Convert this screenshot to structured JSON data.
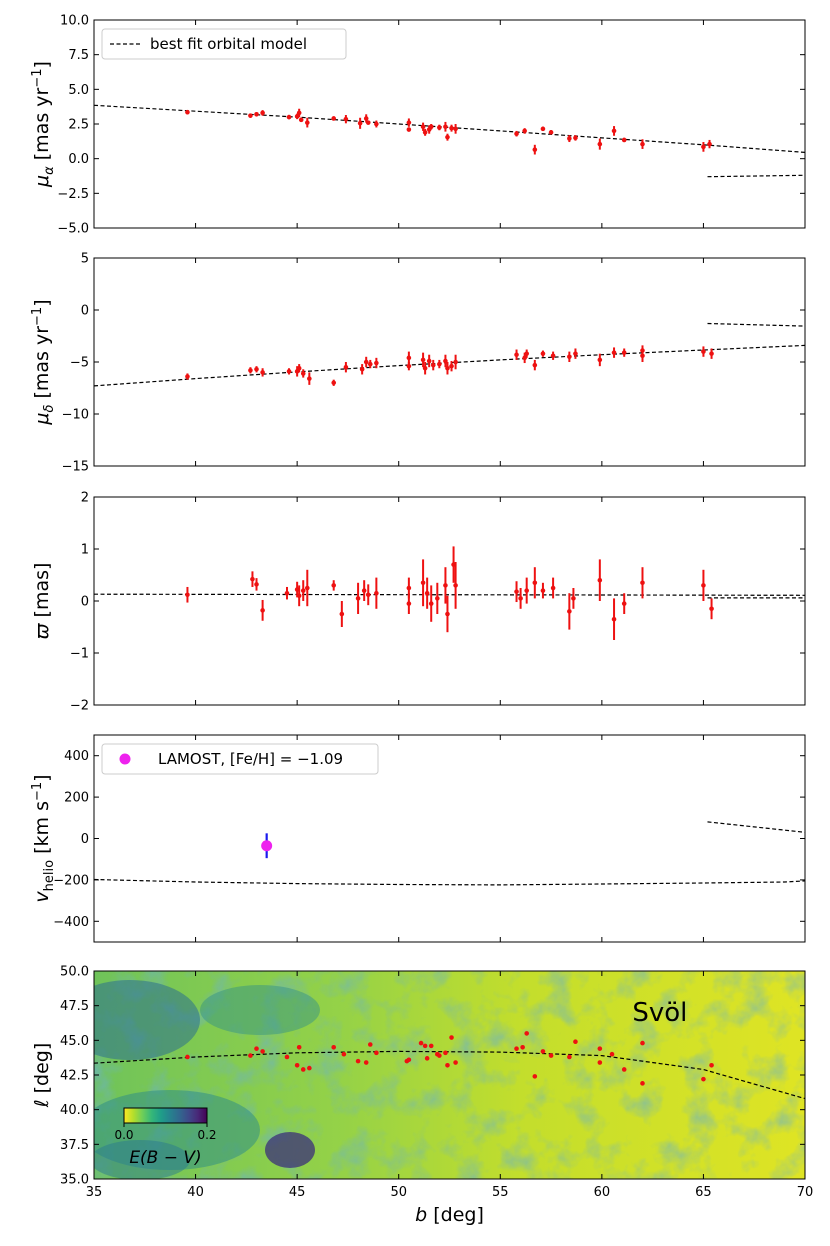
{
  "chart_data": [
    {
      "type": "scatter",
      "panel": "mu_alpha",
      "ylabel_main": "μ",
      "ylabel_sub": "α",
      "ylabel_unit": " [mas yr",
      "ylabel_exp": "−1",
      "ylabel_close": "]",
      "xlim": [
        35,
        70
      ],
      "ylim": [
        -5,
        10
      ],
      "yticks": [
        "−5.0",
        "−2.5",
        "0.0",
        "2.5",
        "5.0",
        "7.5",
        "10.0"
      ],
      "ytick_values": [
        -5,
        -2.5,
        0,
        2.5,
        5,
        7.5,
        10
      ],
      "legend": {
        "label": "best fit orbital model",
        "placement": "top-left"
      },
      "model_lines": [
        {
          "x": [
            35,
            45,
            55,
            65,
            70
          ],
          "y": [
            3.85,
            3.0,
            2.0,
            1.0,
            0.45
          ]
        },
        {
          "x": [
            65.2,
            70
          ],
          "y": [
            -1.3,
            -1.2
          ]
        }
      ],
      "points": [
        [
          39.6,
          3.35,
          0.15
        ],
        [
          42.7,
          3.1,
          0.15
        ],
        [
          43.0,
          3.2,
          0.15
        ],
        [
          43.3,
          3.3,
          0.2
        ],
        [
          44.6,
          3.0,
          0.15
        ],
        [
          45.0,
          3.05,
          0.2
        ],
        [
          45.1,
          3.3,
          0.3
        ],
        [
          45.2,
          2.8,
          0.15
        ],
        [
          45.5,
          2.6,
          0.35
        ],
        [
          46.8,
          2.9,
          0.15
        ],
        [
          47.4,
          2.85,
          0.3
        ],
        [
          48.1,
          2.55,
          0.4
        ],
        [
          48.4,
          2.9,
          0.3
        ],
        [
          48.5,
          2.6,
          0.15
        ],
        [
          48.9,
          2.5,
          0.25
        ],
        [
          50.5,
          2.6,
          0.3
        ],
        [
          50.5,
          2.1,
          0.15
        ],
        [
          51.2,
          2.3,
          0.3
        ],
        [
          51.3,
          1.9,
          0.25
        ],
        [
          51.5,
          2.1,
          0.3
        ],
        [
          51.6,
          2.3,
          0.2
        ],
        [
          52.0,
          2.25,
          0.2
        ],
        [
          52.3,
          2.3,
          0.35
        ],
        [
          52.4,
          1.55,
          0.25
        ],
        [
          52.6,
          2.2,
          0.25
        ],
        [
          52.8,
          2.15,
          0.35
        ],
        [
          55.8,
          1.8,
          0.2
        ],
        [
          56.2,
          2.0,
          0.2
        ],
        [
          56.7,
          0.65,
          0.35
        ],
        [
          57.1,
          2.15,
          0.15
        ],
        [
          57.5,
          1.9,
          0.15
        ],
        [
          58.4,
          1.45,
          0.25
        ],
        [
          58.7,
          1.5,
          0.2
        ],
        [
          59.9,
          1.05,
          0.4
        ],
        [
          60.6,
          2.0,
          0.35
        ],
        [
          61.1,
          1.35,
          0.15
        ],
        [
          62.0,
          1.05,
          0.35
        ],
        [
          65.0,
          0.85,
          0.35
        ],
        [
          65.3,
          1.05,
          0.3
        ]
      ]
    },
    {
      "type": "scatter",
      "panel": "mu_delta",
      "ylabel_main": "μ",
      "ylabel_sub": "δ",
      "ylabel_unit": " [mas yr",
      "ylabel_exp": "−1",
      "ylabel_close": "]",
      "xlim": [
        35,
        70
      ],
      "ylim": [
        -15,
        5
      ],
      "yticks": [
        "−15",
        "−10",
        "−5",
        "0",
        "5"
      ],
      "ytick_values": [
        -15,
        -10,
        -5,
        0,
        5
      ],
      "model_lines": [
        {
          "x": [
            35,
            40,
            45,
            50,
            55,
            60,
            65,
            70
          ],
          "y": [
            -7.3,
            -6.6,
            -5.95,
            -5.35,
            -4.8,
            -4.3,
            -3.85,
            -3.4
          ]
        },
        {
          "x": [
            65.2,
            70
          ],
          "y": [
            -1.3,
            -1.55
          ]
        }
      ],
      "points": [
        [
          39.6,
          -6.4,
          0.3
        ],
        [
          42.7,
          -5.8,
          0.3
        ],
        [
          43.0,
          -5.7,
          0.3
        ],
        [
          43.3,
          -6.0,
          0.4
        ],
        [
          44.6,
          -5.9,
          0.3
        ],
        [
          45.0,
          -5.9,
          0.5
        ],
        [
          45.1,
          -5.6,
          0.4
        ],
        [
          45.3,
          -6.1,
          0.4
        ],
        [
          45.6,
          -6.6,
          0.6
        ],
        [
          46.8,
          -7.0,
          0.3
        ],
        [
          47.4,
          -5.5,
          0.5
        ],
        [
          48.2,
          -5.7,
          0.5
        ],
        [
          48.4,
          -5.0,
          0.5
        ],
        [
          48.6,
          -5.2,
          0.4
        ],
        [
          48.9,
          -5.1,
          0.5
        ],
        [
          50.5,
          -4.6,
          0.6
        ],
        [
          50.5,
          -5.4,
          0.4
        ],
        [
          51.2,
          -4.8,
          0.7
        ],
        [
          51.3,
          -5.6,
          0.6
        ],
        [
          51.5,
          -4.9,
          0.6
        ],
        [
          51.7,
          -5.3,
          0.5
        ],
        [
          52.0,
          -5.2,
          0.4
        ],
        [
          52.3,
          -4.9,
          0.6
        ],
        [
          52.4,
          -5.6,
          0.6
        ],
        [
          52.6,
          -5.4,
          0.5
        ],
        [
          52.8,
          -5.0,
          0.7
        ],
        [
          55.8,
          -4.3,
          0.5
        ],
        [
          56.2,
          -4.6,
          0.5
        ],
        [
          56.3,
          -4.2,
          0.4
        ],
        [
          56.7,
          -5.3,
          0.5
        ],
        [
          57.1,
          -4.2,
          0.3
        ],
        [
          57.6,
          -4.4,
          0.4
        ],
        [
          58.4,
          -4.5,
          0.5
        ],
        [
          58.7,
          -4.2,
          0.5
        ],
        [
          59.9,
          -4.8,
          0.6
        ],
        [
          60.6,
          -4.1,
          0.5
        ],
        [
          61.1,
          -4.1,
          0.4
        ],
        [
          62.0,
          -4.4,
          0.6
        ],
        [
          62.0,
          -3.9,
          0.5
        ],
        [
          65.0,
          -4.0,
          0.5
        ],
        [
          65.4,
          -4.2,
          0.5
        ]
      ]
    },
    {
      "type": "scatter",
      "panel": "parallax",
      "ylabel_main": "ϖ",
      "ylabel_unit": " [mas]",
      "xlim": [
        35,
        70
      ],
      "ylim": [
        -2,
        2
      ],
      "yticks": [
        "−2",
        "−1",
        "0",
        "1",
        "2"
      ],
      "ytick_values": [
        -2,
        -1,
        0,
        1,
        2
      ],
      "model_lines": [
        {
          "x": [
            35,
            70
          ],
          "y": [
            0.13,
            0.11
          ]
        },
        {
          "x": [
            65.2,
            70
          ],
          "y": [
            0.06,
            0.06
          ]
        }
      ],
      "points": [
        [
          39.6,
          0.12,
          0.15
        ],
        [
          42.8,
          0.42,
          0.15
        ],
        [
          43.0,
          0.32,
          0.12
        ],
        [
          43.3,
          -0.18,
          0.2
        ],
        [
          44.5,
          0.15,
          0.12
        ],
        [
          45.0,
          0.22,
          0.15
        ],
        [
          45.1,
          0.1,
          0.2
        ],
        [
          45.3,
          0.2,
          0.2
        ],
        [
          45.5,
          0.25,
          0.35
        ],
        [
          46.8,
          0.3,
          0.1
        ],
        [
          47.2,
          -0.25,
          0.25
        ],
        [
          48.0,
          0.05,
          0.3
        ],
        [
          48.3,
          0.2,
          0.2
        ],
        [
          48.5,
          0.12,
          0.2
        ],
        [
          48.9,
          0.15,
          0.3
        ],
        [
          50.5,
          0.25,
          0.2
        ],
        [
          50.5,
          -0.05,
          0.2
        ],
        [
          51.2,
          0.35,
          0.45
        ],
        [
          51.4,
          0.15,
          0.3
        ],
        [
          51.6,
          -0.05,
          0.35
        ],
        [
          51.9,
          0.05,
          0.3
        ],
        [
          52.3,
          0.3,
          0.35
        ],
        [
          52.4,
          -0.25,
          0.35
        ],
        [
          52.7,
          0.7,
          0.35
        ],
        [
          52.8,
          0.3,
          0.45
        ],
        [
          55.8,
          0.18,
          0.2
        ],
        [
          56.0,
          0.05,
          0.2
        ],
        [
          56.3,
          0.2,
          0.25
        ],
        [
          56.7,
          0.35,
          0.3
        ],
        [
          57.1,
          0.2,
          0.15
        ],
        [
          57.6,
          0.25,
          0.2
        ],
        [
          58.4,
          -0.2,
          0.35
        ],
        [
          58.6,
          0.05,
          0.2
        ],
        [
          59.9,
          0.4,
          0.4
        ],
        [
          60.6,
          -0.35,
          0.4
        ],
        [
          61.1,
          -0.05,
          0.2
        ],
        [
          62.0,
          0.35,
          0.3
        ],
        [
          65.0,
          0.3,
          0.3
        ],
        [
          65.4,
          -0.15,
          0.2
        ]
      ]
    },
    {
      "type": "scatter",
      "panel": "v_helio",
      "ylabel_main": "v",
      "ylabel_sub": "helio",
      "ylabel_unit": " [km s",
      "ylabel_exp": "−1",
      "ylabel_close": "]",
      "xlim": [
        35,
        70
      ],
      "ylim": [
        -500,
        500
      ],
      "yticks": [
        "−400",
        "−200",
        "0",
        "200",
        "400"
      ],
      "ytick_values": [
        -400,
        -200,
        0,
        200,
        400
      ],
      "legend": {
        "label": "LAMOST, [Fe/H] = −1.09",
        "placement": "top-left"
      },
      "model_lines": [
        {
          "x": [
            35,
            40,
            45,
            50,
            55,
            60,
            65,
            69,
            70
          ],
          "y": [
            -198,
            -210,
            -218,
            -222,
            -224,
            -220,
            -215,
            -210,
            -205
          ]
        },
        {
          "x": [
            65.2,
            70
          ],
          "y": [
            80,
            30
          ]
        }
      ],
      "lamost": {
        "x": 43.5,
        "y": -35,
        "err": 60
      }
    },
    {
      "type": "heatmap",
      "panel": "sky",
      "xlabel_main": "b",
      "xlabel_unit": " [deg]",
      "ylabel_main": "ℓ",
      "ylabel_unit": " [deg]",
      "xlim": [
        35,
        70
      ],
      "ylim": [
        35,
        50
      ],
      "xticks": [
        "35",
        "40",
        "45",
        "50",
        "55",
        "60",
        "65",
        "70"
      ],
      "xtick_values": [
        35,
        40,
        45,
        50,
        55,
        60,
        65,
        70
      ],
      "yticks": [
        "35.0",
        "37.5",
        "40.0",
        "42.5",
        "45.0",
        "47.5",
        "50.0"
      ],
      "ytick_values": [
        35,
        37.5,
        40,
        42.5,
        45,
        47.5,
        50
      ],
      "annotation": "Svöl",
      "colorbar": {
        "label": "E(B − V)",
        "min_label": "0.0",
        "max_label": "0.2",
        "vmin": 0.0,
        "vmax": 0.2,
        "colors": [
          "#fde725",
          "#b5de2b",
          "#6ece58",
          "#35b779",
          "#1f9e89",
          "#26828e",
          "#31688e",
          "#3e4989",
          "#482878",
          "#440154"
        ]
      },
      "model_line": {
        "x": [
          35,
          40,
          45,
          50,
          55,
          60,
          65,
          70
        ],
        "y": [
          43.35,
          43.8,
          44.1,
          44.2,
          44.15,
          43.9,
          42.9,
          40.8
        ]
      },
      "points": [
        [
          39.6,
          43.8
        ],
        [
          42.7,
          43.9
        ],
        [
          43.0,
          44.4
        ],
        [
          43.3,
          44.2
        ],
        [
          44.5,
          43.8
        ],
        [
          45.0,
          43.2
        ],
        [
          45.1,
          44.5
        ],
        [
          45.3,
          42.9
        ],
        [
          45.6,
          43.0
        ],
        [
          46.8,
          44.5
        ],
        [
          47.3,
          44.0
        ],
        [
          48.0,
          43.5
        ],
        [
          48.4,
          43.4
        ],
        [
          48.6,
          44.7
        ],
        [
          48.9,
          44.1
        ],
        [
          50.4,
          43.5
        ],
        [
          50.5,
          43.6
        ],
        [
          51.1,
          44.8
        ],
        [
          51.3,
          44.6
        ],
        [
          51.4,
          43.7
        ],
        [
          51.6,
          44.6
        ],
        [
          51.9,
          44.0
        ],
        [
          52.0,
          43.9
        ],
        [
          52.3,
          44.1
        ],
        [
          52.4,
          43.2
        ],
        [
          52.6,
          45.2
        ],
        [
          52.8,
          43.4
        ],
        [
          55.8,
          44.4
        ],
        [
          56.1,
          44.5
        ],
        [
          56.3,
          45.5
        ],
        [
          56.7,
          42.4
        ],
        [
          57.1,
          44.2
        ],
        [
          57.5,
          43.9
        ],
        [
          58.4,
          43.8
        ],
        [
          58.7,
          44.9
        ],
        [
          59.9,
          43.4
        ],
        [
          59.9,
          44.4
        ],
        [
          60.5,
          44.0
        ],
        [
          61.1,
          42.9
        ],
        [
          62.0,
          44.8
        ],
        [
          62.0,
          41.9
        ],
        [
          65.0,
          42.2
        ],
        [
          65.4,
          43.2
        ]
      ]
    }
  ]
}
